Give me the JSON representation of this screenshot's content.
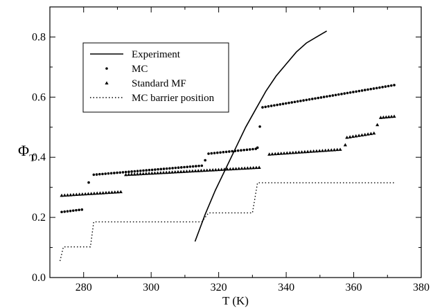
{
  "chart_data": {
    "type": "scatter",
    "xlabel": "T (K)",
    "ylabel_main": "Φ",
    "ylabel_sub": "T",
    "xlim": [
      270,
      380
    ],
    "ylim": [
      0.0,
      0.9
    ],
    "x_ticks": [
      280,
      300,
      320,
      340,
      360,
      380
    ],
    "y_ticks": [
      0.0,
      0.2,
      0.4,
      0.6,
      0.8
    ],
    "y_tick_labels": [
      "0.0",
      "0.2",
      "0.4",
      "0.6",
      "0.8"
    ],
    "grid": false,
    "legend_position": "top-left",
    "series": [
      {
        "name": "Experiment",
        "style": "solid-line",
        "points": [
          [
            313.0,
            0.12
          ],
          [
            316.0,
            0.21
          ],
          [
            319.0,
            0.29
          ],
          [
            322.0,
            0.36
          ],
          [
            325.0,
            0.43
          ],
          [
            328.0,
            0.5
          ],
          [
            331.0,
            0.56
          ],
          [
            334.0,
            0.62
          ],
          [
            337.0,
            0.67
          ],
          [
            340.0,
            0.71
          ],
          [
            343.0,
            0.75
          ],
          [
            346.0,
            0.78
          ],
          [
            349.0,
            0.8
          ],
          [
            352.0,
            0.82
          ]
        ]
      },
      {
        "name": "MC",
        "style": "dots",
        "segments": [
          {
            "x0": 273.5,
            "x1": 279.5,
            "y0": 0.218,
            "y1": 0.226
          },
          {
            "x0": 281.5,
            "x1": 281.5,
            "y0": 0.316,
            "y1": 0.316
          },
          {
            "x0": 283.0,
            "x1": 315.0,
            "y0": 0.342,
            "y1": 0.372
          },
          {
            "x0": 316.0,
            "x1": 316.0,
            "y0": 0.39,
            "y1": 0.39
          },
          {
            "x0": 317.0,
            "x1": 331.0,
            "y0": 0.412,
            "y1": 0.428
          },
          {
            "x0": 331.5,
            "x1": 331.5,
            "y0": 0.432,
            "y1": 0.432
          },
          {
            "x0": 332.2,
            "x1": 332.2,
            "y0": 0.502,
            "y1": 0.502
          },
          {
            "x0": 333.0,
            "x1": 372.0,
            "y0": 0.566,
            "y1": 0.64
          }
        ]
      },
      {
        "name": "Standard MF",
        "style": "triangles",
        "segments": [
          {
            "x0": 273.5,
            "x1": 291.0,
            "y0": 0.273,
            "y1": 0.285
          },
          {
            "x0": 292.5,
            "x1": 332.0,
            "y0": 0.342,
            "y1": 0.366
          },
          {
            "x0": 335.0,
            "x1": 356.0,
            "y0": 0.41,
            "y1": 0.426
          },
          {
            "x0": 357.5,
            "x1": 357.5,
            "y0": 0.441,
            "y1": 0.441
          },
          {
            "x0": 358.0,
            "x1": 366.0,
            "y0": 0.466,
            "y1": 0.48
          },
          {
            "x0": 367.0,
            "x1": 367.0,
            "y0": 0.508,
            "y1": 0.508
          },
          {
            "x0": 368.0,
            "x1": 372.0,
            "y0": 0.532,
            "y1": 0.536
          }
        ]
      },
      {
        "name": "MC barrier position",
        "style": "dotted-line",
        "points": [
          [
            273.0,
            0.055
          ],
          [
            274.0,
            0.102
          ],
          [
            282.0,
            0.102
          ],
          [
            283.0,
            0.185
          ],
          [
            315.0,
            0.185
          ],
          [
            317.0,
            0.215
          ],
          [
            330.0,
            0.215
          ],
          [
            331.5,
            0.315
          ],
          [
            372.0,
            0.315
          ]
        ]
      }
    ]
  }
}
